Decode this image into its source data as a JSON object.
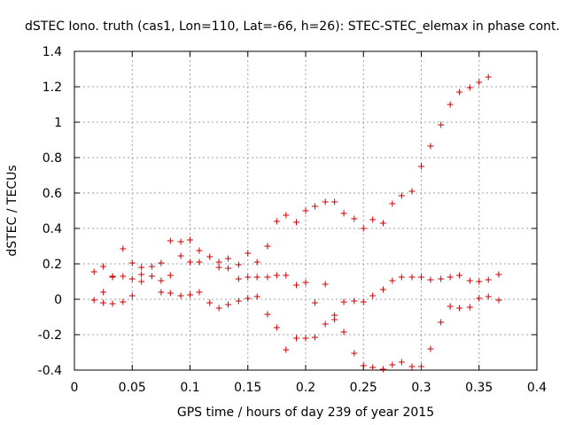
{
  "chart_data": {
    "type": "scatter",
    "title": "dSTEC Iono. truth (cas1, Lon=110, Lat=-66, h=26): STEC-STEC_elemax in phase cont.",
    "xlabel": "GPS time / hours of day 239 of year 2015",
    "ylabel": "dSTEC  / TECUs",
    "xlim": [
      0,
      0.4
    ],
    "ylim": [
      -0.4,
      1.4
    ],
    "xticks": [
      "0",
      "0.05",
      "0.1",
      "0.15",
      "0.2",
      "0.25",
      "0.3",
      "0.35",
      "0.4"
    ],
    "yticks": [
      "-0.4",
      "-0.2",
      "0",
      "0.2",
      "0.4",
      "0.6",
      "0.8",
      "1",
      "1.2",
      "1.4"
    ],
    "grid": true,
    "marker": "plus",
    "color": "#cc0000",
    "series": [
      {
        "points": [
          [
            0.017,
            0.155
          ],
          [
            0.025,
            0.185
          ],
          [
            0.033,
            0.13
          ],
          [
            0.042,
            0.285
          ],
          [
            0.042,
            0.13
          ],
          [
            0.05,
            0.205
          ],
          [
            0.058,
            0.18
          ],
          [
            0.067,
            0.185
          ],
          [
            0.075,
            0.205
          ],
          [
            0.083,
            0.33
          ],
          [
            0.092,
            0.325
          ],
          [
            0.1,
            0.335
          ],
          [
            0.1,
            0.21
          ],
          [
            0.108,
            0.275
          ],
          [
            0.117,
            0.24
          ],
          [
            0.125,
            0.21
          ],
          [
            0.133,
            0.23
          ],
          [
            0.142,
            0.195
          ],
          [
            0.15,
            0.26
          ],
          [
            0.158,
            0.21
          ],
          [
            0.167,
            0.3
          ],
          [
            0.175,
            0.44
          ],
          [
            0.183,
            0.475
          ],
          [
            0.192,
            0.435
          ],
          [
            0.2,
            0.5
          ],
          [
            0.208,
            0.525
          ],
          [
            0.217,
            0.55
          ],
          [
            0.225,
            0.55
          ],
          [
            0.233,
            0.485
          ],
          [
            0.242,
            0.455
          ],
          [
            0.25,
            0.4
          ],
          [
            0.258,
            0.45
          ],
          [
            0.267,
            0.43
          ],
          [
            0.275,
            0.54
          ],
          [
            0.283,
            0.585
          ],
          [
            0.292,
            0.61
          ],
          [
            0.3,
            0.75
          ],
          [
            0.308,
            0.865
          ],
          [
            0.317,
            0.985
          ],
          [
            0.325,
            1.1
          ],
          [
            0.333,
            1.17
          ],
          [
            0.342,
            1.195
          ],
          [
            0.35,
            1.225
          ],
          [
            0.358,
            1.255
          ]
        ]
      },
      {
        "points": [
          [
            0.017,
            -0.005
          ],
          [
            0.025,
            0.04
          ],
          [
            0.025,
            -0.02
          ],
          [
            0.033,
            0.125
          ],
          [
            0.033,
            -0.025
          ],
          [
            0.042,
            -0.015
          ],
          [
            0.05,
            0.115
          ],
          [
            0.05,
            0.02
          ],
          [
            0.058,
            0.14
          ],
          [
            0.058,
            0.1
          ],
          [
            0.067,
            0.13
          ],
          [
            0.075,
            0.04
          ],
          [
            0.075,
            0.105
          ],
          [
            0.083,
            0.135
          ],
          [
            0.083,
            0.035
          ],
          [
            0.092,
            0.245
          ],
          [
            0.092,
            0.02
          ],
          [
            0.1,
            0.025
          ],
          [
            0.108,
            0.21
          ],
          [
            0.108,
            0.04
          ],
          [
            0.117,
            -0.02
          ],
          [
            0.125,
            0.18
          ],
          [
            0.125,
            -0.05
          ],
          [
            0.133,
            0.175
          ],
          [
            0.133,
            -0.03
          ],
          [
            0.142,
            0.115
          ],
          [
            0.142,
            -0.01
          ],
          [
            0.15,
            0.125
          ],
          [
            0.15,
            0.005
          ],
          [
            0.158,
            0.125
          ],
          [
            0.158,
            0.015
          ],
          [
            0.167,
            0.125
          ],
          [
            0.167,
            -0.085
          ],
          [
            0.175,
            0.135
          ],
          [
            0.175,
            -0.16
          ],
          [
            0.183,
            0.135
          ],
          [
            0.183,
            -0.285
          ],
          [
            0.192,
            0.08
          ],
          [
            0.192,
            -0.22
          ],
          [
            0.2,
            0.095
          ],
          [
            0.2,
            -0.22
          ],
          [
            0.208,
            -0.02
          ],
          [
            0.208,
            -0.215
          ],
          [
            0.217,
            0.085
          ],
          [
            0.217,
            -0.14
          ],
          [
            0.225,
            -0.09
          ],
          [
            0.225,
            -0.115
          ],
          [
            0.233,
            -0.015
          ],
          [
            0.233,
            -0.185
          ],
          [
            0.242,
            -0.01
          ],
          [
            0.242,
            -0.305
          ],
          [
            0.25,
            -0.015
          ],
          [
            0.25,
            -0.375
          ],
          [
            0.258,
            0.02
          ],
          [
            0.258,
            -0.385
          ],
          [
            0.267,
            0.055
          ],
          [
            0.267,
            -0.395
          ],
          [
            0.275,
            0.105
          ],
          [
            0.275,
            -0.37
          ],
          [
            0.283,
            0.125
          ],
          [
            0.283,
            -0.355
          ],
          [
            0.292,
            0.125
          ],
          [
            0.292,
            -0.38
          ],
          [
            0.3,
            0.125
          ],
          [
            0.3,
            -0.38
          ],
          [
            0.308,
            0.11
          ],
          [
            0.308,
            -0.28
          ],
          [
            0.317,
            0.115
          ],
          [
            0.317,
            -0.13
          ],
          [
            0.325,
            0.125
          ],
          [
            0.325,
            -0.04
          ],
          [
            0.333,
            0.135
          ],
          [
            0.333,
            -0.05
          ],
          [
            0.342,
            0.105
          ],
          [
            0.342,
            -0.045
          ],
          [
            0.35,
            0.1
          ],
          [
            0.35,
            0.005
          ],
          [
            0.358,
            0.11
          ],
          [
            0.358,
            0.015
          ],
          [
            0.367,
            0.14
          ],
          [
            0.367,
            -0.005
          ]
        ]
      }
    ]
  }
}
